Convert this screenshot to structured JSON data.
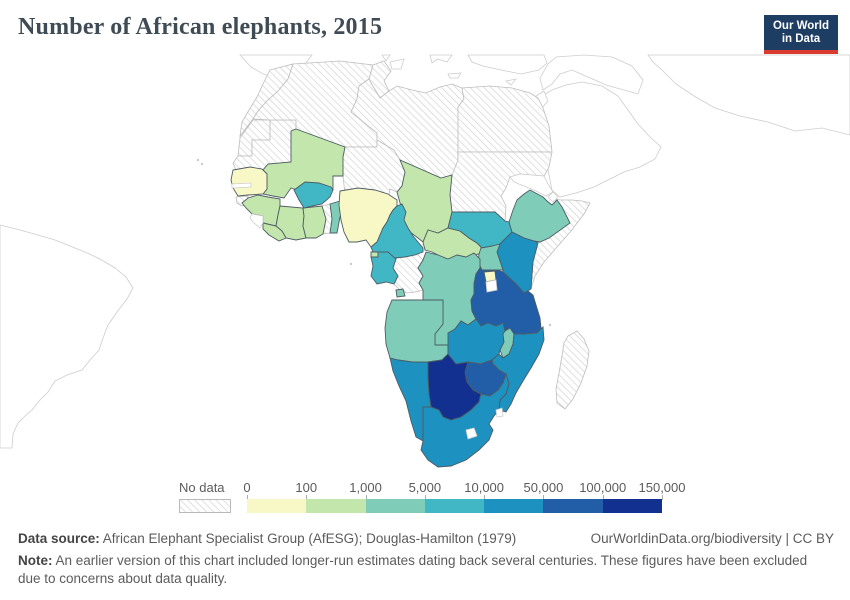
{
  "title": "Number of African elephants, 2015",
  "logo": {
    "line1": "Our World",
    "line2": "in Data",
    "bg_color": "#1d3d63",
    "bar_color": "#d93b31"
  },
  "legend": {
    "no_data_label": "No data",
    "tick_labels": [
      "0",
      "100",
      "1,000",
      "5,000",
      "10,000",
      "50,000",
      "100,000",
      "150,000"
    ]
  },
  "footer": {
    "source_label": "Data source:",
    "source_text": " African Elephant Specialist Group (AfESG); Douglas-Hamilton (1979)",
    "link_text": "OurWorldinData.org/biodiversity | CC BY",
    "note_label": "Note:",
    "note_text": " An earlier version of this chart included longer-run estimates dating back several centuries. These figures have been excluded due to concerns about data quality."
  },
  "chart_data": {
    "type": "choropleth_map",
    "region": "Africa",
    "title": "Number of African elephants, 2015",
    "unit": "elephants",
    "legend_position": "bottom",
    "bins": [
      {
        "range": "0-100",
        "color": "#f8f8c6"
      },
      {
        "range": "100-1,000",
        "color": "#c3e6ad"
      },
      {
        "range": "1,000-5,000",
        "color": "#7fcdb8"
      },
      {
        "range": "5,000-10,000",
        "color": "#41b6c4"
      },
      {
        "range": "10,000-50,000",
        "color": "#1d91c0"
      },
      {
        "range": "50,000-100,000",
        "color": "#225ea8"
      },
      {
        "range": "100,000-150,000",
        "color": "#12308f"
      }
    ],
    "countries": [
      {
        "id": "senegal",
        "name": "Senegal",
        "bin": "0-100"
      },
      {
        "id": "nigeria",
        "name": "Nigeria",
        "bin": "0-100"
      },
      {
        "id": "rwanda",
        "name": "Rwanda",
        "bin": "0-100"
      },
      {
        "id": "mali",
        "name": "Mali",
        "bin": "100-1,000"
      },
      {
        "id": "chad",
        "name": "Chad",
        "bin": "100-1,000"
      },
      {
        "id": "guinea",
        "name": "Guinea",
        "bin": "100-1,000"
      },
      {
        "id": "cote-divoire",
        "name": "Cote d'Ivoire",
        "bin": "100-1,000"
      },
      {
        "id": "liberia",
        "name": "Liberia",
        "bin": "100-1,000"
      },
      {
        "id": "ghana",
        "name": "Ghana",
        "bin": "100-1,000"
      },
      {
        "id": "central-african-republic",
        "name": "Central African Republic",
        "bin": "100-1,000"
      },
      {
        "id": "equatorial-guinea",
        "name": "Equatorial Guinea",
        "bin": "100-1,000"
      },
      {
        "id": "benin",
        "name": "Benin",
        "bin": "1,000-5,000"
      },
      {
        "id": "ethiopia",
        "name": "Ethiopia",
        "bin": "1,000-5,000"
      },
      {
        "id": "uganda",
        "name": "Uganda",
        "bin": "1,000-5,000"
      },
      {
        "id": "democratic-republic-of-congo",
        "name": "Democratic Republic of Congo",
        "bin": "1,000-5,000"
      },
      {
        "id": "angola",
        "name": "Angola",
        "bin": "1,000-5,000"
      },
      {
        "id": "malawi",
        "name": "Malawi",
        "bin": "1,000-5,000"
      },
      {
        "id": "burkina-faso",
        "name": "Burkina Faso",
        "bin": "5,000-10,000"
      },
      {
        "id": "cameroon",
        "name": "Cameroon",
        "bin": "5,000-10,000"
      },
      {
        "id": "south-sudan",
        "name": "South Sudan",
        "bin": "5,000-10,000"
      },
      {
        "id": "gabon",
        "name": "Gabon",
        "bin": "5,000-10,000"
      },
      {
        "id": "kenya",
        "name": "Kenya",
        "bin": "10,000-50,000"
      },
      {
        "id": "mozambique",
        "name": "Mozambique",
        "bin": "10,000-50,000"
      },
      {
        "id": "zambia",
        "name": "Zambia",
        "bin": "10,000-50,000"
      },
      {
        "id": "namibia",
        "name": "Namibia",
        "bin": "10,000-50,000"
      },
      {
        "id": "south-africa",
        "name": "South Africa",
        "bin": "10,000-50,000"
      },
      {
        "id": "tanzania",
        "name": "Tanzania",
        "bin": "50,000-100,000"
      },
      {
        "id": "zimbabwe",
        "name": "Zimbabwe",
        "bin": "50,000-100,000"
      },
      {
        "id": "botswana",
        "name": "Botswana",
        "bin": "100,000-150,000"
      }
    ],
    "no_data": {
      "pattern": "diagonal-hatch",
      "countries": [
        "morocco",
        "western-sahara",
        "algeria",
        "tunisia",
        "libya",
        "egypt",
        "sudan",
        "mauritania",
        "niger",
        "somalia",
        "togo",
        "guinea-bissau",
        "congo",
        "madagascar"
      ]
    },
    "unshaded_outline_regions": [
      "Gambia",
      "Sierra Leone",
      "Eritrea",
      "Djibouti",
      "Burundi",
      "Lesotho",
      "Eswatini",
      "Spain",
      "Italy",
      "Greece",
      "Turkey",
      "Middle East",
      "Arabian Peninsula",
      "Iran",
      "Brazil"
    ]
  }
}
